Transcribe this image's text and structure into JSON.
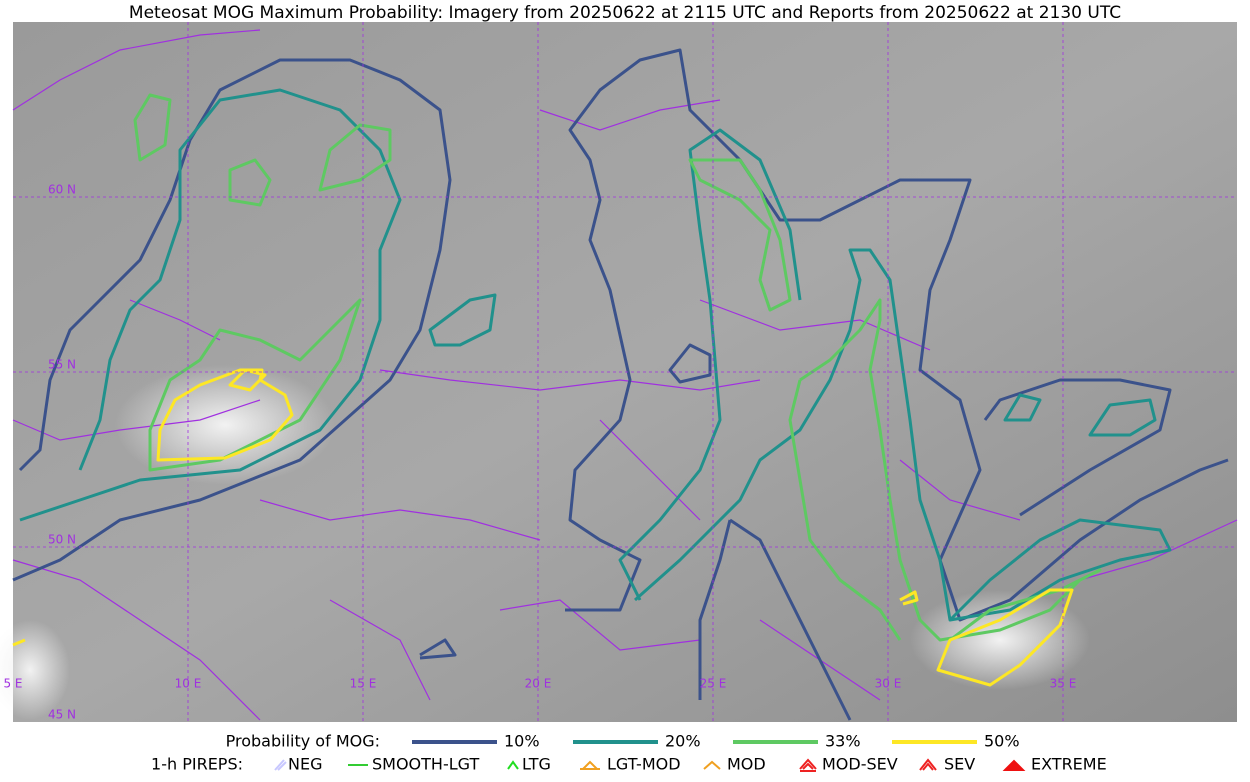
{
  "title": "Meteosat MOG Maximum Probability: Imagery from 20250622 at 2115 UTC and Reports from 20250622 at 2130 UTC",
  "map": {
    "lat_labels": [
      "60 N",
      "55 N",
      "50 N",
      "45 N"
    ],
    "lon_labels": [
      "5 E",
      "10 E",
      "15 E",
      "20 E",
      "25 E",
      "30 E",
      "35 E"
    ]
  },
  "legend": {
    "probability": {
      "label": "Probability of MOG:",
      "items": [
        {
          "label": "10%",
          "color": "#3b528b"
        },
        {
          "label": "20%",
          "color": "#21918c"
        },
        {
          "label": "33%",
          "color": "#5ec962"
        },
        {
          "label": "50%",
          "color": "#fde725"
        }
      ]
    },
    "pireps": {
      "label": "1-h PIREPS:",
      "items": [
        {
          "label": "NEG",
          "color": "#c8c8ff"
        },
        {
          "label": "SMOOTH-LGT",
          "color": "#33cc33"
        },
        {
          "label": "LTG",
          "color": "#22dd22"
        },
        {
          "label": "LGT-MOD",
          "color": "#f0a020"
        },
        {
          "label": "MOD",
          "color": "#f0a020"
        },
        {
          "label": "MOD-SEV",
          "color": "#ee2222"
        },
        {
          "label": "SEV",
          "color": "#ee2222"
        },
        {
          "label": "EXTREME",
          "color": "#ee1111"
        }
      ]
    }
  }
}
